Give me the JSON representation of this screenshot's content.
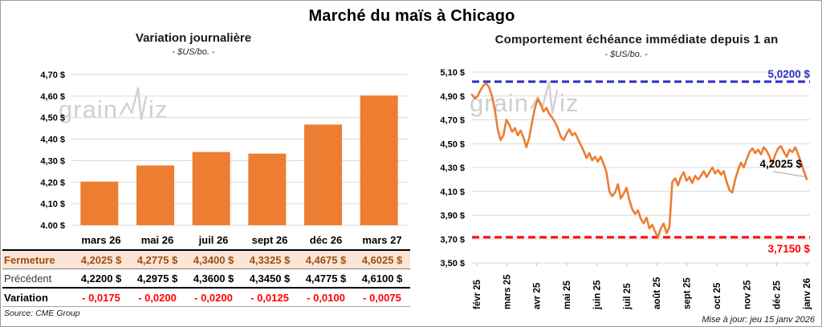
{
  "page": {
    "title": "Marché du maïs à Chicago",
    "source": "Source: CME Group",
    "updated": "Mise à jour: jeu 15 janv 2026",
    "watermark_prefix": "grain",
    "watermark_suffix": "iz"
  },
  "colors": {
    "orange": "#ED7D31",
    "blue": "#2D2DC8",
    "red": "#FF0000",
    "grid": "#D9D9D9",
    "peach_row": "#FBE5D6",
    "fermeture_text": "#9C4F12",
    "leader": "#A6A6A6"
  },
  "chart_data": [
    {
      "type": "bar",
      "title": "Variation journalière",
      "subtitle": "- $US/bo. -",
      "categories": [
        "mars 26",
        "mai 26",
        "juil 26",
        "sept 26",
        "déc 26",
        "mars 27"
      ],
      "values": [
        4.2025,
        4.2775,
        4.34,
        4.3325,
        4.4675,
        4.6025
      ],
      "ylim": [
        4.0,
        4.7
      ],
      "ytick_step": 0.1,
      "ytick_format": "0,00 $",
      "grid": true,
      "bar_color": "#ED7D31"
    },
    {
      "type": "line",
      "title": "Comportement échéance immédiate depuis 1 an",
      "subtitle": "- $US/bo. -",
      "x_labels": [
        "févr 25",
        "mars 25",
        "avr 25",
        "mai 25",
        "juin 25",
        "juil 25",
        "août 25",
        "sept 25",
        "oct 25",
        "nov 25",
        "déc 25",
        "janv 26"
      ],
      "values": [
        4.91,
        4.88,
        4.9,
        4.95,
        4.99,
        5.005,
        4.97,
        4.9,
        4.78,
        4.62,
        4.53,
        4.57,
        4.7,
        4.66,
        4.6,
        4.63,
        4.57,
        4.61,
        4.55,
        4.47,
        4.55,
        4.68,
        4.8,
        4.875,
        4.83,
        4.77,
        4.8,
        4.75,
        4.72,
        4.68,
        4.63,
        4.56,
        4.53,
        4.58,
        4.62,
        4.57,
        4.59,
        4.54,
        4.49,
        4.44,
        4.38,
        4.42,
        4.36,
        4.39,
        4.35,
        4.39,
        4.33,
        4.26,
        4.1,
        4.06,
        4.09,
        4.16,
        4.04,
        4.08,
        4.13,
        4.03,
        3.95,
        3.91,
        3.94,
        3.87,
        3.83,
        3.88,
        3.79,
        3.82,
        3.76,
        3.715,
        3.79,
        3.83,
        3.75,
        3.8,
        4.18,
        4.21,
        4.15,
        4.22,
        4.26,
        4.19,
        4.22,
        4.17,
        4.23,
        4.2,
        4.23,
        4.27,
        4.22,
        4.26,
        4.3,
        4.25,
        4.28,
        4.24,
        4.27,
        4.18,
        4.11,
        4.09,
        4.2,
        4.28,
        4.34,
        4.3,
        4.37,
        4.43,
        4.46,
        4.42,
        4.45,
        4.41,
        4.47,
        4.44,
        4.39,
        4.33,
        4.41,
        4.46,
        4.48,
        4.43,
        4.39,
        4.45,
        4.43,
        4.47,
        4.41,
        4.34,
        4.27,
        4.2025
      ],
      "ylim": [
        3.5,
        5.1
      ],
      "ytick_step": 0.2,
      "grid": true,
      "line_color": "#ED7D31",
      "upper_line": {
        "value": 5.02,
        "label": "5,0200 $",
        "color": "#2D2DC8",
        "style": "dashed"
      },
      "lower_line": {
        "value": 3.715,
        "label": "3,7150 $",
        "color": "#FF0000",
        "style": "dashed"
      },
      "end_label": {
        "text": "4,2025 $",
        "value": 4.2025
      }
    }
  ],
  "table": {
    "col_header": [
      "mars 26",
      "mai 26",
      "juil 26",
      "sept 26",
      "déc 26",
      "mars 27"
    ],
    "rows": [
      {
        "label": "Fermeture",
        "values": [
          "4,2025 $",
          "4,2775 $",
          "4,3400 $",
          "4,3325 $",
          "4,4675 $",
          "4,6025 $"
        ]
      },
      {
        "label": "Précédent",
        "values": [
          "4,2200 $",
          "4,2975 $",
          "4,3600 $",
          "4,3450 $",
          "4,4775 $",
          "4,6100 $"
        ]
      },
      {
        "label": "Variation",
        "values": [
          "- 0,0175",
          "- 0,0200",
          "- 0,0200",
          "- 0,0125",
          "- 0,0100",
          "- 0,0075"
        ]
      }
    ]
  }
}
